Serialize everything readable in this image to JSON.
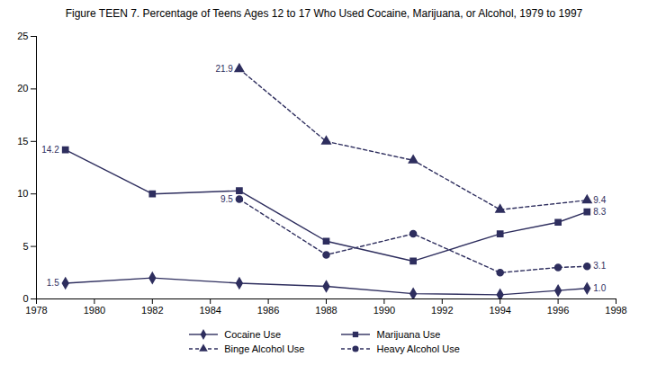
{
  "chart_data": {
    "type": "line",
    "title": "Figure TEEN 7. Percentage of Teens Ages 12 to 17 Who Used Cocaine, Marijuana, or Alcohol, 1979 to 1997",
    "x": [
      1979,
      1982,
      1985,
      1988,
      1991,
      1994,
      1996,
      1997
    ],
    "series": [
      {
        "name": "Cocaine Use",
        "color": "#2e2e5e",
        "marker": "diamond",
        "line_style": "solid",
        "values": [
          1.5,
          2.0,
          1.5,
          1.2,
          0.5,
          0.4,
          0.8,
          1.0
        ]
      },
      {
        "name": "Marijuana Use",
        "color": "#2e2e5e",
        "marker": "square",
        "line_style": "solid",
        "values": [
          14.2,
          10.0,
          10.3,
          5.5,
          3.6,
          6.2,
          7.3,
          8.3
        ]
      },
      {
        "name": "Binge Alcohol Use",
        "color": "#2e2e5e",
        "marker": "triangle",
        "line_style": "dashed",
        "values": [
          null,
          null,
          21.9,
          15.0,
          13.2,
          8.5,
          null,
          9.4
        ]
      },
      {
        "name": "Heavy Alcohol Use",
        "color": "#2e2e5e",
        "marker": "circle",
        "line_style": "dashed",
        "values": [
          null,
          null,
          9.5,
          4.2,
          6.2,
          2.5,
          3.0,
          3.1
        ]
      }
    ],
    "annotations": [
      {
        "x": 1979,
        "y": 1.5,
        "text": "1.5"
      },
      {
        "x": 1997,
        "y": 1.0,
        "text": "1.0"
      },
      {
        "x": 1979,
        "y": 14.2,
        "text": "14.2"
      },
      {
        "x": 1997,
        "y": 8.3,
        "text": "8.3"
      },
      {
        "x": 1985,
        "y": 21.9,
        "text": "21.9"
      },
      {
        "x": 1997,
        "y": 9.4,
        "text": "9.4"
      },
      {
        "x": 1985,
        "y": 9.5,
        "text": "9.5"
      },
      {
        "x": 1997,
        "y": 3.1,
        "text": "3.1"
      }
    ],
    "xlim": [
      1978,
      1998
    ],
    "ylim": [
      0,
      25
    ],
    "xticks": [
      1978,
      1980,
      1982,
      1984,
      1986,
      1988,
      1990,
      1992,
      1994,
      1996,
      1998
    ],
    "yticks": [
      0,
      5,
      10,
      15,
      20,
      25
    ],
    "grid": false,
    "legend": "bottom"
  }
}
